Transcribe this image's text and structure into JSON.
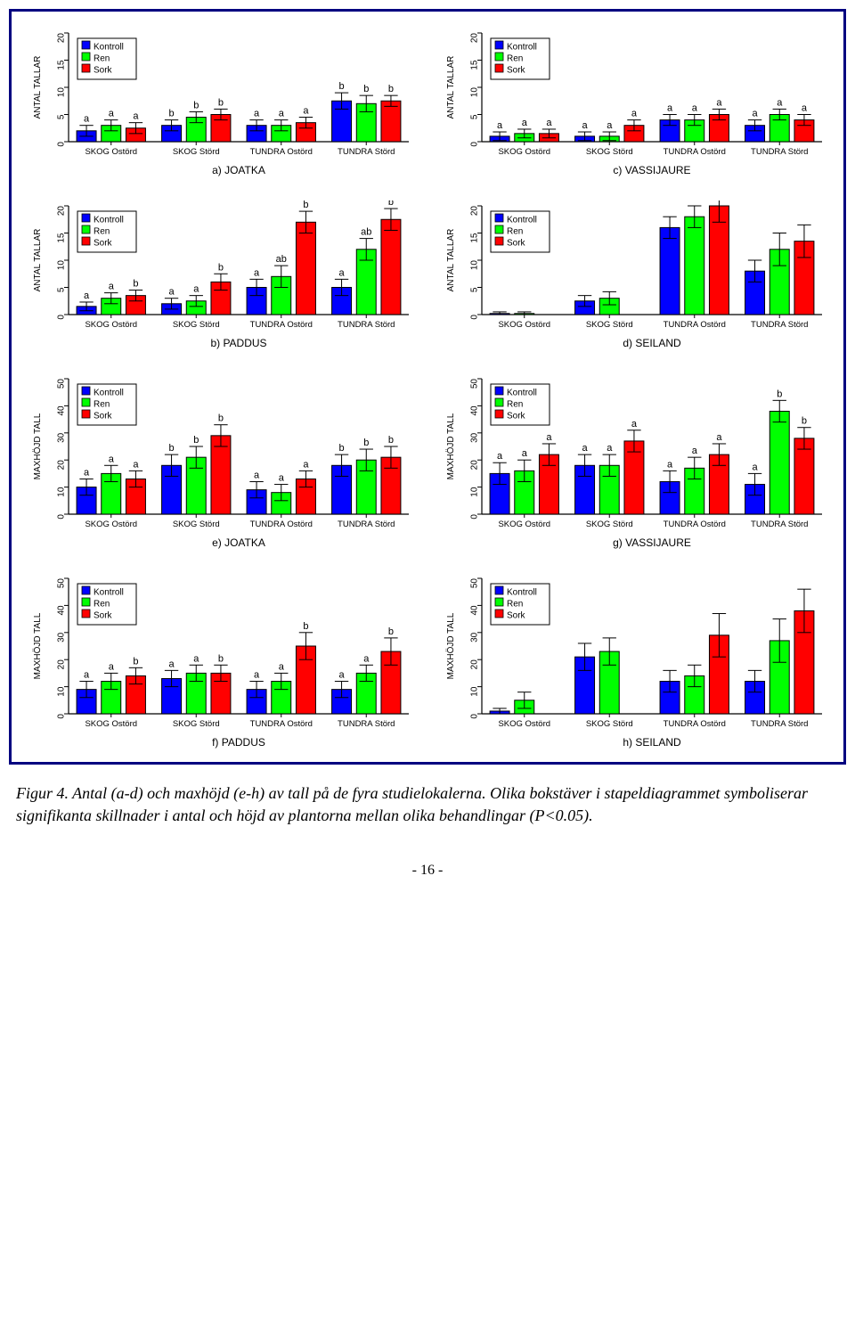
{
  "colors": {
    "kontroll": "#0000ff",
    "ren": "#00ff00",
    "sork": "#ff0000",
    "axis": "#000000",
    "bar_stroke": "#000000",
    "bg": "#ffffff"
  },
  "legend_labels": {
    "kontroll": "Kontroll",
    "ren": "Ren",
    "sork": "Sork"
  },
  "axis_labels": {
    "antal": "ANTAL TALLAR",
    "maxh": "MAXHÖJD TALL"
  },
  "x_categories": [
    "SKOG Ostörd",
    "SKOG Störd",
    "TUNDRA Ostörd",
    "TUNDRA Störd"
  ],
  "sig_labels": {
    "a": "a",
    "b": "b",
    "ab": "ab"
  },
  "panels": {
    "a": {
      "ylabel": "antal",
      "ymax": 20,
      "yticks": [
        0,
        5,
        10,
        15,
        20
      ],
      "subtitle": "a) JOATKA",
      "groups": [
        {
          "vals": [
            2,
            3,
            2.5
          ],
          "err": [
            1,
            1,
            1
          ],
          "labs": [
            "a",
            "a",
            "a"
          ]
        },
        {
          "vals": [
            3,
            4.5,
            5
          ],
          "err": [
            1,
            1,
            1
          ],
          "labs": [
            "b",
            "b",
            "b"
          ]
        },
        {
          "vals": [
            3,
            3,
            3.5
          ],
          "err": [
            1,
            1,
            1
          ],
          "labs": [
            "a",
            "a",
            "a"
          ]
        },
        {
          "vals": [
            7.5,
            7,
            7.5
          ],
          "err": [
            1.5,
            1.5,
            1
          ],
          "labs": [
            "b",
            "b",
            "b"
          ]
        }
      ]
    },
    "c": {
      "ylabel": "antal",
      "ymax": 20,
      "yticks": [
        0,
        5,
        10,
        15,
        20
      ],
      "subtitle": "c) VASSIJAURE",
      "groups": [
        {
          "vals": [
            1,
            1.5,
            1.5
          ],
          "err": [
            0.8,
            0.8,
            0.8
          ],
          "labs": [
            "a",
            "a",
            "a"
          ]
        },
        {
          "vals": [
            1,
            1,
            3
          ],
          "err": [
            0.8,
            0.8,
            1
          ],
          "labs": [
            "a",
            "a",
            "a"
          ]
        },
        {
          "vals": [
            4,
            4,
            5
          ],
          "err": [
            1,
            1,
            1
          ],
          "labs": [
            "a",
            "a",
            "a"
          ]
        },
        {
          "vals": [
            3,
            5,
            4
          ],
          "err": [
            1,
            1,
            1
          ],
          "labs": [
            "a",
            "a",
            "a"
          ]
        }
      ]
    },
    "b": {
      "ylabel": "antal",
      "ymax": 20,
      "yticks": [
        0,
        5,
        10,
        15,
        20
      ],
      "subtitle": "b) PADDUS",
      "groups": [
        {
          "vals": [
            1.5,
            3,
            3.5
          ],
          "err": [
            0.8,
            1,
            1
          ],
          "labs": [
            "a",
            "a",
            "b"
          ]
        },
        {
          "vals": [
            2,
            2.5,
            6
          ],
          "err": [
            1,
            1,
            1.5
          ],
          "labs": [
            "a",
            "a",
            "b"
          ]
        },
        {
          "vals": [
            5,
            7,
            17
          ],
          "err": [
            1.5,
            2,
            2
          ],
          "labs": [
            "a",
            "ab",
            "b"
          ]
        },
        {
          "vals": [
            5,
            12,
            17.5
          ],
          "err": [
            1.5,
            2,
            2
          ],
          "labs": [
            "a",
            "ab",
            "b"
          ]
        }
      ]
    },
    "d": {
      "ylabel": "antal",
      "ymax": 20,
      "yticks": [
        0,
        5,
        10,
        15,
        20
      ],
      "subtitle": "d) SEILAND",
      "no_labs": true,
      "groups": [
        {
          "vals": [
            0.2,
            0.2,
            0
          ],
          "err": [
            0.3,
            0.3,
            0
          ]
        },
        {
          "vals": [
            2.5,
            3,
            0
          ],
          "err": [
            1,
            1.2,
            0
          ]
        },
        {
          "vals": [
            16,
            18,
            20
          ],
          "err": [
            2,
            2,
            3
          ]
        },
        {
          "vals": [
            8,
            12,
            13.5
          ],
          "err": [
            2,
            3,
            3
          ]
        }
      ]
    },
    "e": {
      "ylabel": "maxh",
      "ymax": 50,
      "yticks": [
        0,
        10,
        20,
        30,
        40,
        50
      ],
      "subtitle": "e) JOATKA",
      "groups": [
        {
          "vals": [
            10,
            15,
            13
          ],
          "err": [
            3,
            3,
            3
          ],
          "labs": [
            "a",
            "a",
            "a"
          ]
        },
        {
          "vals": [
            18,
            21,
            29
          ],
          "err": [
            4,
            4,
            4
          ],
          "labs": [
            "b",
            "b",
            "b"
          ]
        },
        {
          "vals": [
            9,
            8,
            13
          ],
          "err": [
            3,
            3,
            3
          ],
          "labs": [
            "a",
            "a",
            "a"
          ]
        },
        {
          "vals": [
            18,
            20,
            21
          ],
          "err": [
            4,
            4,
            4
          ],
          "labs": [
            "b",
            "b",
            "b"
          ]
        }
      ]
    },
    "g": {
      "ylabel": "maxh",
      "ymax": 50,
      "yticks": [
        0,
        10,
        20,
        30,
        40,
        50
      ],
      "subtitle": "g) VASSIJAURE",
      "groups": [
        {
          "vals": [
            15,
            16,
            22
          ],
          "err": [
            4,
            4,
            4
          ],
          "labs": [
            "a",
            "a",
            "a"
          ]
        },
        {
          "vals": [
            18,
            18,
            27
          ],
          "err": [
            4,
            4,
            4
          ],
          "labs": [
            "a",
            "a",
            "a"
          ]
        },
        {
          "vals": [
            12,
            17,
            22
          ],
          "err": [
            4,
            4,
            4
          ],
          "labs": [
            "a",
            "a",
            "a"
          ]
        },
        {
          "vals": [
            11,
            38,
            28
          ],
          "err": [
            4,
            4,
            4
          ],
          "labs": [
            "a",
            "b",
            "b"
          ]
        }
      ]
    },
    "f": {
      "ylabel": "maxh",
      "ymax": 50,
      "yticks": [
        0,
        10,
        20,
        30,
        40,
        50
      ],
      "subtitle": "f) PADDUS",
      "groups": [
        {
          "vals": [
            9,
            12,
            14
          ],
          "err": [
            3,
            3,
            3
          ],
          "labs": [
            "a",
            "a",
            "b"
          ]
        },
        {
          "vals": [
            13,
            15,
            15
          ],
          "err": [
            3,
            3,
            3
          ],
          "labs": [
            "a",
            "a",
            "b"
          ]
        },
        {
          "vals": [
            9,
            12,
            25
          ],
          "err": [
            3,
            3,
            5
          ],
          "labs": [
            "a",
            "a",
            "b"
          ]
        },
        {
          "vals": [
            9,
            15,
            23
          ],
          "err": [
            3,
            3,
            5
          ],
          "labs": [
            "a",
            "a",
            "b"
          ]
        }
      ]
    },
    "h": {
      "ylabel": "maxh",
      "ymax": 50,
      "yticks": [
        0,
        10,
        20,
        30,
        40,
        50
      ],
      "subtitle": "h) SEILAND",
      "no_labs": true,
      "groups": [
        {
          "vals": [
            1,
            5,
            0
          ],
          "err": [
            1,
            3,
            0
          ]
        },
        {
          "vals": [
            21,
            23,
            0
          ],
          "err": [
            5,
            5,
            0
          ]
        },
        {
          "vals": [
            12,
            14,
            29
          ],
          "err": [
            4,
            4,
            8
          ]
        },
        {
          "vals": [
            12,
            27,
            38
          ],
          "err": [
            4,
            8,
            8
          ]
        }
      ]
    }
  },
  "caption": "Figur 4. Antal (a-d) och maxhöjd (e-h) av tall på de fyra studielokalerna. Olika bokstäver i stapeldiagrammet symboliserar signifikanta skillnader i antal och höjd av plantorna mellan olika behandlingar (P<0.05).",
  "pagenum": "- 16 -",
  "style": {
    "bar_width": 0.23,
    "group_gap": 0.06,
    "font_axis": 10,
    "font_tick": 10,
    "font_cat": 9.5,
    "font_sub": 12,
    "font_sig": 11,
    "font_legend": 11
  }
}
